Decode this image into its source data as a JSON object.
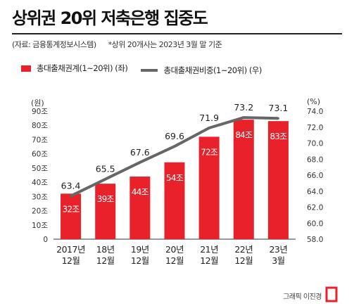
{
  "title": "상위권 20위 저축은행 집중도",
  "notes": {
    "source": "(자료: 금융통계정보시스템)",
    "footnote": "*상위 20개사는 2023년 3월 말 기준"
  },
  "legend": {
    "bar_label": "총대출채권계(1~20위) (좌)",
    "line_label": "총대출채권비중(1~20위) (우)"
  },
  "units": {
    "left": "(원)",
    "right": "(%)"
  },
  "credit": "그래픽 이진경",
  "colors": {
    "bar": "#e8212b",
    "line": "#666666",
    "bar_text": "#ffffff"
  },
  "chart_data": {
    "type": "bar",
    "categories": [
      "2017년\n12월",
      "18년\n12월",
      "19년\n12월",
      "20년\n12월",
      "21년\n12월",
      "22년\n12월",
      "23년\n3월"
    ],
    "series": [
      {
        "name": "총대출채권계(1~20위) (좌)",
        "axis": "left",
        "type": "bar",
        "values": [
          32,
          39,
          44,
          54,
          72,
          84,
          83
        ],
        "labels": [
          "32조",
          "39조",
          "44조",
          "54조",
          "72조",
          "84조",
          "83조"
        ]
      },
      {
        "name": "총대출채권비중(1~20위) (우)",
        "axis": "right",
        "type": "line",
        "values": [
          63.4,
          65.5,
          67.6,
          69.6,
          71.9,
          73.2,
          73.1
        ],
        "labels": [
          "63.4",
          "65.5",
          "67.6",
          "69.6",
          "71.9",
          "73.2",
          "73.1"
        ]
      }
    ],
    "left_axis": {
      "range": [
        0,
        90
      ],
      "ticks": [
        "0",
        "10조",
        "20조",
        "30조",
        "40조",
        "50조",
        "60조",
        "70조",
        "80조",
        "90조"
      ]
    },
    "right_axis": {
      "range": [
        58.0,
        74.0
      ],
      "ticks": [
        "58.0",
        "60.0",
        "62.0",
        "64.0",
        "66.0",
        "68.0",
        "70.0",
        "72.0",
        "74.0"
      ]
    },
    "grid": false
  }
}
